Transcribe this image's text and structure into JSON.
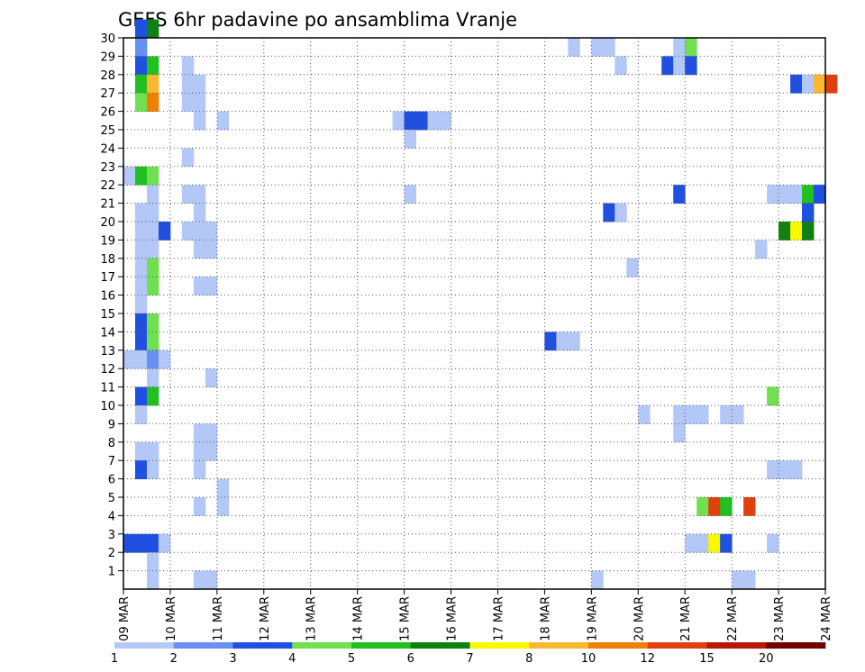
{
  "chart_data": {
    "type": "heatmap",
    "title": "GEFS 6hr padavine po ansamblima Vranje",
    "x_tick_labels": [
      "09 MAR",
      "10 MAR",
      "11 MAR",
      "12 MAR",
      "13 MAR",
      "14 MAR",
      "15 MAR",
      "16 MAR",
      "17 MAR",
      "18 MAR",
      "19 MAR",
      "20 MAR",
      "21 MAR",
      "22 MAR",
      "23 MAR",
      "24 MAR"
    ],
    "y_tick_labels": [
      "1",
      "2",
      "3",
      "4",
      "5",
      "6",
      "7",
      "8",
      "9",
      "10",
      "11",
      "12",
      "13",
      "14",
      "15",
      "16",
      "17",
      "18",
      "19",
      "20",
      "21",
      "22",
      "23",
      "24",
      "25",
      "26",
      "27",
      "28",
      "29",
      "30"
    ],
    "xlim_days": [
      9,
      24
    ],
    "ylim": [
      0,
      30
    ],
    "steps_per_day": 4,
    "grid": true,
    "colorbar": {
      "labels": [
        "1",
        "2",
        "3",
        "4",
        "5",
        "6",
        "7",
        "8",
        "10",
        "12",
        "15",
        "20"
      ],
      "colors": [
        "#b4c8f8",
        "#6890f0",
        "#2050e0",
        "#70e050",
        "#20c020",
        "#108010",
        "#f8f800",
        "#f8b830",
        "#f08000",
        "#e04010",
        "#b81808",
        "#700000"
      ]
    },
    "cells": [
      [
        1,
        30,
        2
      ],
      [
        2,
        30,
        5
      ],
      [
        1,
        29,
        1
      ],
      [
        1,
        28,
        2
      ],
      [
        2,
        28,
        4
      ],
      [
        1,
        27,
        4
      ],
      [
        2,
        27,
        7
      ],
      [
        1,
        26,
        3
      ],
      [
        2,
        26,
        8
      ],
      [
        0,
        22,
        0
      ],
      [
        1,
        22,
        4
      ],
      [
        2,
        22,
        3
      ],
      [
        2,
        21,
        0
      ],
      [
        1,
        20,
        0
      ],
      [
        2,
        20,
        0
      ],
      [
        1,
        19,
        0
      ],
      [
        2,
        19,
        0
      ],
      [
        3,
        19,
        2
      ],
      [
        1,
        18,
        0
      ],
      [
        2,
        18,
        0
      ],
      [
        1,
        17,
        0
      ],
      [
        2,
        17,
        3
      ],
      [
        1,
        16,
        0
      ],
      [
        2,
        16,
        3
      ],
      [
        1,
        15,
        0
      ],
      [
        1,
        14,
        2
      ],
      [
        2,
        14,
        3
      ],
      [
        1,
        13,
        2
      ],
      [
        2,
        13,
        3
      ],
      [
        0,
        12,
        0
      ],
      [
        1,
        12,
        0
      ],
      [
        2,
        12,
        1
      ],
      [
        3,
        12,
        0
      ],
      [
        2,
        11,
        0
      ],
      [
        1,
        10,
        2
      ],
      [
        2,
        10,
        4
      ],
      [
        1,
        9,
        0
      ],
      [
        1,
        7,
        0
      ],
      [
        2,
        7,
        0
      ],
      [
        1,
        6,
        2
      ],
      [
        2,
        6,
        0
      ],
      [
        0,
        2,
        2
      ],
      [
        1,
        2,
        2
      ],
      [
        2,
        2,
        2
      ],
      [
        3,
        2,
        0
      ],
      [
        2,
        1,
        0
      ],
      [
        2,
        0,
        0
      ],
      [
        5,
        28,
        0
      ],
      [
        5,
        27,
        0
      ],
      [
        6,
        27,
        0
      ],
      [
        5,
        26,
        0
      ],
      [
        6,
        26,
        0
      ],
      [
        6,
        25,
        0
      ],
      [
        8,
        25,
        0
      ],
      [
        5,
        23,
        0
      ],
      [
        5,
        21,
        0
      ],
      [
        6,
        21,
        0
      ],
      [
        6,
        20,
        0
      ],
      [
        5,
        19,
        0
      ],
      [
        6,
        19,
        0
      ],
      [
        7,
        19,
        0
      ],
      [
        6,
        18,
        0
      ],
      [
        7,
        18,
        0
      ],
      [
        6,
        16,
        0
      ],
      [
        7,
        16,
        0
      ],
      [
        7,
        11,
        0
      ],
      [
        6,
        8,
        0
      ],
      [
        7,
        8,
        0
      ],
      [
        6,
        7,
        0
      ],
      [
        7,
        7,
        0
      ],
      [
        6,
        6,
        0
      ],
      [
        8,
        5,
        0
      ],
      [
        6,
        4,
        0
      ],
      [
        8,
        4,
        0
      ],
      [
        6,
        0,
        0
      ],
      [
        7,
        0,
        0
      ],
      [
        23,
        25,
        0
      ],
      [
        24,
        25,
        2
      ],
      [
        25,
        25,
        2
      ],
      [
        26,
        25,
        0
      ],
      [
        27,
        25,
        0
      ],
      [
        24,
        24,
        0
      ],
      [
        24,
        21,
        0
      ],
      [
        36,
        13,
        2
      ],
      [
        38,
        29,
        0
      ],
      [
        40,
        29,
        0
      ],
      [
        41,
        29,
        0
      ],
      [
        42,
        28,
        0
      ],
      [
        37,
        13,
        0
      ],
      [
        38,
        13,
        0
      ],
      [
        40,
        0,
        0
      ],
      [
        41,
        20,
        2
      ],
      [
        42,
        20,
        0
      ],
      [
        43,
        17,
        0
      ],
      [
        44,
        9,
        0
      ],
      [
        47,
        29,
        0
      ],
      [
        48,
        29,
        3
      ],
      [
        46,
        28,
        2
      ],
      [
        47,
        28,
        0
      ],
      [
        48,
        28,
        2
      ],
      [
        47,
        21,
        2
      ],
      [
        47,
        9,
        0
      ],
      [
        48,
        9,
        0
      ],
      [
        49,
        9,
        0
      ],
      [
        47,
        8,
        0
      ],
      [
        48,
        2,
        0
      ],
      [
        49,
        2,
        0
      ],
      [
        50,
        2,
        6
      ],
      [
        51,
        2,
        2
      ],
      [
        49,
        4,
        3
      ],
      [
        50,
        4,
        9
      ],
      [
        51,
        4,
        4
      ],
      [
        53,
        4,
        9
      ],
      [
        51,
        9,
        0
      ],
      [
        52,
        9,
        0
      ],
      [
        52,
        0,
        0
      ],
      [
        53,
        0,
        0
      ],
      [
        54,
        18,
        0
      ],
      [
        55,
        10,
        3
      ],
      [
        55,
        6,
        0
      ],
      [
        55,
        2,
        0
      ],
      [
        55,
        21,
        0
      ],
      [
        56,
        21,
        0
      ],
      [
        57,
        21,
        0
      ],
      [
        58,
        21,
        4
      ],
      [
        59,
        21,
        2
      ],
      [
        56,
        19,
        5
      ],
      [
        57,
        19,
        6
      ],
      [
        58,
        19,
        5
      ],
      [
        58,
        20,
        2
      ],
      [
        57,
        27,
        2
      ],
      [
        58,
        27,
        0
      ],
      [
        59,
        27,
        7
      ],
      [
        60,
        27,
        9
      ],
      [
        56,
        6,
        0
      ],
      [
        57,
        6,
        0
      ]
    ]
  }
}
